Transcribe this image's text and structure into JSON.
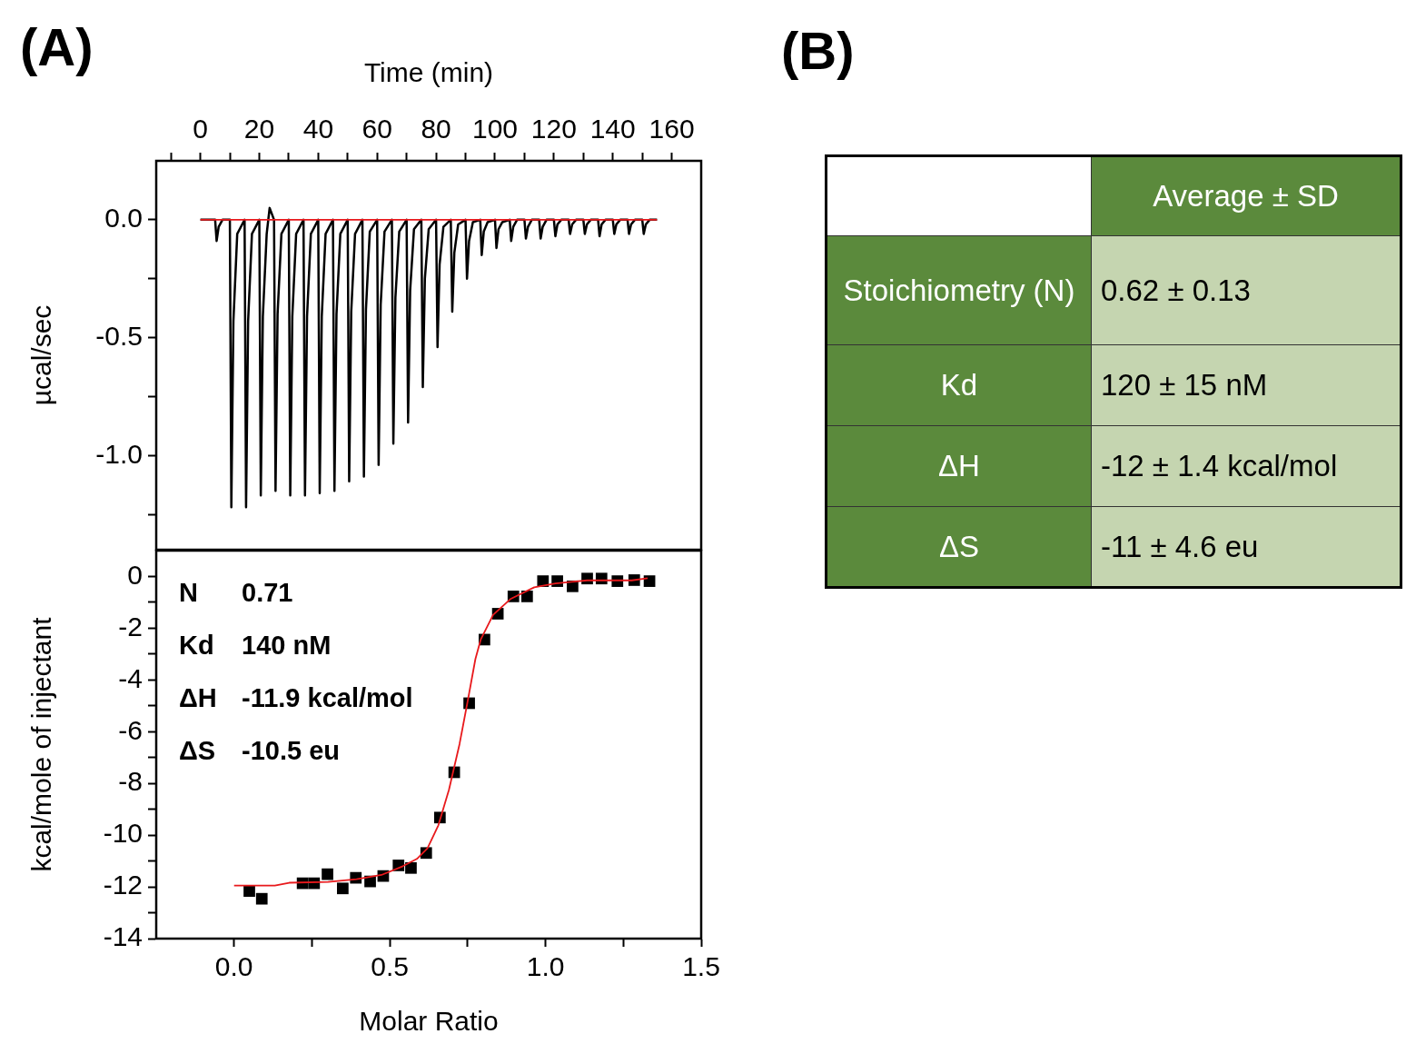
{
  "chart_data": [
    {
      "type": "line",
      "title": "(A)",
      "xlabel": "Time (min)",
      "ylabel": "µcal/sec",
      "xlim": [
        -15,
        170
      ],
      "xticks": [
        {
          "value": -10,
          "label": null
        },
        0,
        {
          "value": 10,
          "label": null
        },
        20,
        {
          "value": 30,
          "label": null
        },
        40,
        {
          "value": 50,
          "label": null
        },
        60,
        {
          "value": 70,
          "label": null
        },
        80,
        {
          "value": 90,
          "label": null
        },
        100,
        {
          "value": 110,
          "label": null
        },
        120,
        {
          "value": 130,
          "label": null
        },
        140,
        {
          "value": 150,
          "label": null
        },
        160
      ],
      "ylim": [
        -1.4,
        0.25
      ],
      "yticks": [
        {
          "value": 0,
          "label": "0.0"
        },
        {
          "value": -0.25,
          "label": null
        },
        {
          "value": -0.5,
          "label": "-0.5"
        },
        {
          "value": -0.75,
          "label": null
        },
        {
          "value": -1,
          "label": "-1.0"
        },
        {
          "value": -1.25,
          "label": null
        }
      ],
      "series": [
        {
          "type": "line",
          "color": "#000000",
          "marker": "none",
          "x": [
            0,
            5,
            5.5,
            6.2,
            7.5,
            10,
            10.5,
            11.2,
            12.5,
            15,
            15.5,
            16.2,
            17.5,
            20,
            20.5,
            21.2,
            22.5,
            23.5,
            25,
            25.5,
            26.2,
            27.5,
            30,
            30.5,
            31.2,
            32.5,
            35,
            35.5,
            36.2,
            37.5,
            40,
            40.5,
            41.2,
            42.5,
            45,
            45.5,
            46.2,
            47.5,
            50,
            50.5,
            51.2,
            52.5,
            55,
            55.5,
            56.2,
            57.5,
            60,
            60.5,
            61.2,
            62.5,
            65,
            65.5,
            66.2,
            67.5,
            70,
            70.5,
            71.2,
            72.5,
            75,
            75.5,
            76.2,
            77.5,
            80,
            80.5,
            81.2,
            82.5,
            85,
            85.5,
            86.2,
            87.5,
            90,
            90.5,
            91.2,
            92.5,
            95,
            95.5,
            96.2,
            97.5,
            100,
            100.5,
            101.2,
            102.5,
            105,
            105.5,
            106.2,
            107.5,
            110,
            110.5,
            111.2,
            112.5,
            115,
            115.5,
            116.2,
            117.5,
            120,
            120.5,
            121.2,
            122.5,
            125,
            125.5,
            126.2,
            127.5,
            130,
            130.5,
            131.2,
            132.5,
            135,
            135.5,
            136.2,
            137.5,
            140,
            140.5,
            141.2,
            142.5,
            145,
            145.5,
            146.2,
            147.5,
            150,
            150.5,
            151.2,
            152.5,
            155
          ],
          "values": [
            0,
            0,
            -0.09,
            -0.03,
            0,
            0,
            -1.22,
            -0.43,
            -0.06,
            0,
            -1.22,
            -0.43,
            -0.06,
            0,
            -1.17,
            -0.41,
            -0.06,
            0.05,
            0,
            -1.15,
            -0.4,
            -0.06,
            0,
            -1.17,
            -0.41,
            -0.06,
            0,
            -1.17,
            -0.41,
            -0.06,
            0,
            -1.16,
            -0.41,
            -0.06,
            0,
            -1.15,
            -0.4,
            -0.06,
            0,
            -1.11,
            -0.39,
            -0.06,
            0,
            -1.09,
            -0.38,
            -0.05,
            0,
            -1.04,
            -0.36,
            -0.05,
            0,
            -0.95,
            -0.33,
            -0.05,
            0,
            -0.86,
            -0.3,
            -0.04,
            0,
            -0.71,
            -0.25,
            -0.04,
            0,
            -0.54,
            -0.19,
            -0.03,
            0,
            -0.39,
            -0.14,
            -0.02,
            0,
            -0.25,
            -0.09,
            -0.01,
            0,
            -0.15,
            -0.05,
            -0.01,
            0,
            -0.12,
            -0.04,
            -0.01,
            0,
            -0.09,
            -0.03,
            0,
            0,
            -0.08,
            -0.03,
            0,
            0,
            -0.08,
            -0.03,
            0,
            0,
            -0.07,
            -0.02,
            0,
            0,
            -0.06,
            -0.02,
            0,
            0,
            -0.06,
            -0.02,
            0,
            0,
            -0.07,
            -0.02,
            0,
            0,
            -0.06,
            -0.02,
            0,
            0,
            -0.06,
            -0.02,
            0,
            0,
            -0.06,
            -0.02,
            0,
            0
          ]
        },
        {
          "type": "line",
          "color": "#e8191c",
          "marker": "none",
          "x": [
            0,
            155
          ],
          "values": [
            0,
            0
          ]
        }
      ]
    },
    {
      "type": "scatter",
      "xlabel": "Molar Ratio",
      "ylabel": "kcal/mole of injectant",
      "xlim": [
        -0.25,
        1.5
      ],
      "xticks": [
        {
          "value": 0,
          "label": "0.0"
        },
        {
          "value": 0.25,
          "label": null
        },
        {
          "value": 0.5,
          "label": "0.5"
        },
        {
          "value": 0.75,
          "label": null
        },
        {
          "value": 1,
          "label": "1.0"
        },
        {
          "value": 1.25,
          "label": null
        },
        {
          "value": 1.5,
          "label": "1.5"
        }
      ],
      "ylim": [
        -14,
        1
      ],
      "yticks": [
        0,
        {
          "value": -1,
          "label": null
        },
        -2,
        {
          "value": -3,
          "label": null
        },
        -4,
        {
          "value": -5,
          "label": null
        },
        -6,
        {
          "value": -7,
          "label": null
        },
        -8,
        {
          "value": -9,
          "label": null
        },
        -10,
        {
          "value": -11,
          "label": null
        },
        -12,
        {
          "value": -13,
          "label": null
        },
        -14
      ],
      "annotations": [
        "N",
        "0.71",
        "Kd",
        "140 nM",
        "ΔH",
        "-11.9 kcal/mol",
        "ΔS",
        "-10.5 eu"
      ],
      "series": [
        {
          "type": "scatter",
          "color": "#000000",
          "marker": "square",
          "x": [
            0.049,
            0.089,
            0.22,
            0.257,
            0.3,
            0.349,
            0.391,
            0.437,
            0.479,
            0.528,
            0.568,
            0.617,
            0.661,
            0.707,
            0.755,
            0.804,
            0.847,
            0.897,
            0.941,
            0.992,
            1.038,
            1.087,
            1.134,
            1.18,
            1.231,
            1.285,
            1.334
          ],
          "values": [
            -12.16,
            -12.46,
            -11.86,
            -11.86,
            -11.51,
            -12.06,
            -11.65,
            -11.79,
            -11.58,
            -11.17,
            -11.27,
            -10.69,
            -9.32,
            -7.57,
            -4.9,
            -2.44,
            -1.44,
            -0.77,
            -0.77,
            -0.18,
            -0.18,
            -0.38,
            -0.08,
            -0.08,
            -0.18,
            -0.14,
            -0.18
          ]
        },
        {
          "type": "line",
          "color": "#e8191c",
          "marker": "none",
          "x": [
            0,
            0.131,
            0.177,
            0.302,
            0.393,
            0.473,
            0.542,
            0.587,
            0.621,
            0.656,
            0.69,
            0.724,
            0.752,
            0.775,
            0.792,
            0.832,
            0.889,
            0.964,
            1.032,
            1.083,
            1.134,
            1.277,
            1.328
          ],
          "values": [
            -11.95,
            -11.95,
            -11.84,
            -11.81,
            -11.7,
            -11.54,
            -11.2,
            -10.92,
            -10.51,
            -9.62,
            -8.25,
            -6.48,
            -4.7,
            -3.19,
            -2.44,
            -1.48,
            -0.86,
            -0.42,
            -0.27,
            -0.21,
            -0.15,
            -0.15,
            -0.07
          ]
        }
      ]
    },
    {
      "type": "other",
      "title": "(B)",
      "annotations": [
        "Average ± SD",
        "Stoichiometry (N)",
        "0.62 ± 0.13",
        "Kd",
        "120 ± 15 nM",
        "ΔH",
        "-12 ± 1.4 kcal/mol",
        "ΔS",
        "-11 ± 4.6 eu"
      ]
    }
  ]
}
